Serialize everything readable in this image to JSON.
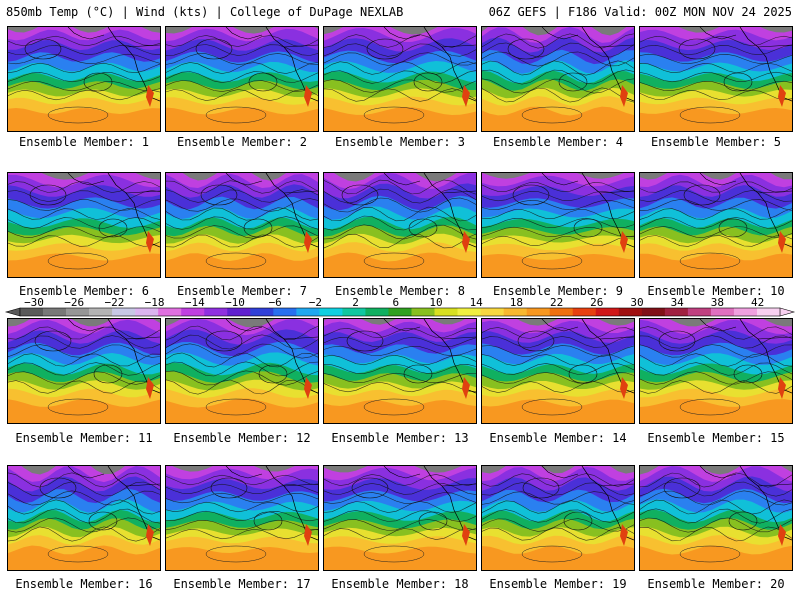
{
  "header": {
    "left": "850mb Temp (°C) | Wind (kts) | College of DuPage NEXLAB",
    "right": "06Z GEFS | F186 Valid: 00Z MON NOV 24 2025"
  },
  "members": [
    {
      "label": "Ensemble Member: 1"
    },
    {
      "label": "Ensemble Member: 2"
    },
    {
      "label": "Ensemble Member: 3"
    },
    {
      "label": "Ensemble Member: 4"
    },
    {
      "label": "Ensemble Member: 5"
    },
    {
      "label": "Ensemble Member: 6"
    },
    {
      "label": "Ensemble Member: 7"
    },
    {
      "label": "Ensemble Member: 8"
    },
    {
      "label": "Ensemble Member: 9"
    },
    {
      "label": "Ensemble Member: 10"
    },
    {
      "label": "Ensemble Member: 11"
    },
    {
      "label": "Ensemble Member: 12"
    },
    {
      "label": "Ensemble Member: 13"
    },
    {
      "label": "Ensemble Member: 14"
    },
    {
      "label": "Ensemble Member: 15"
    },
    {
      "label": "Ensemble Member: 16"
    },
    {
      "label": "Ensemble Member: 17"
    },
    {
      "label": "Ensemble Member: 18"
    },
    {
      "label": "Ensemble Member: 19"
    },
    {
      "label": "Ensemble Member: 20"
    }
  ],
  "colorbar": {
    "tick_labels": [
      "−30",
      "−26",
      "−22",
      "−18",
      "−14",
      "−10",
      "−6",
      "−2",
      "2",
      "6",
      "10",
      "14",
      "18",
      "22",
      "26",
      "30",
      "34",
      "38",
      "42"
    ],
    "colors": [
      "#5a5a5a",
      "#787878",
      "#969696",
      "#b4b4b4",
      "#c8c8e6",
      "#dcb4f0",
      "#e070e0",
      "#c040e0",
      "#9030e0",
      "#6020d0",
      "#3040d8",
      "#2870f0",
      "#20a8f0",
      "#10d0e0",
      "#10c8a0",
      "#10b060",
      "#30a020",
      "#88c020",
      "#d8e020",
      "#f0f040",
      "#f8d840",
      "#f8b830",
      "#f89820",
      "#f07010",
      "#e84010",
      "#d01818",
      "#a01010",
      "#801018",
      "#a02040",
      "#c04080",
      "#e070c0",
      "#f0a0e0",
      "#f8d0f0"
    ]
  }
}
